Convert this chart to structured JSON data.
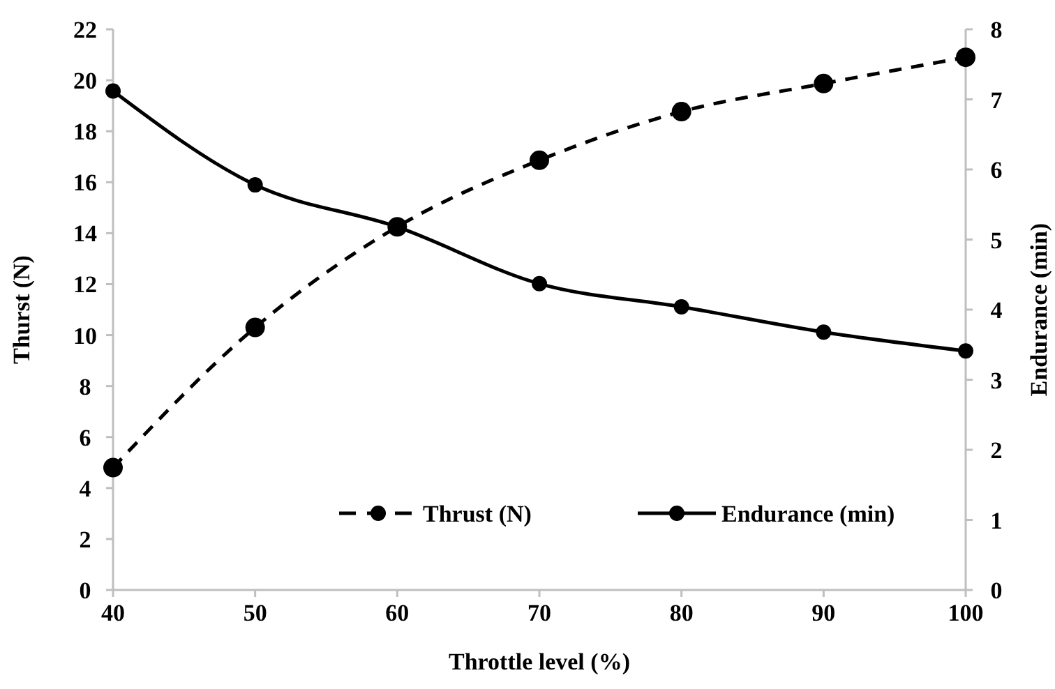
{
  "chart_data": {
    "type": "line",
    "xlabel": "Throttle level (%)",
    "ylabel": "Thurst (N)",
    "y2label": "Endurance (min)",
    "x": [
      40,
      50,
      60,
      70,
      80,
      90,
      100
    ],
    "xlim": [
      40,
      100
    ],
    "xticks": [
      40,
      50,
      60,
      70,
      80,
      90,
      100
    ],
    "ylim": [
      0,
      22
    ],
    "yticks": [
      0,
      2,
      4,
      6,
      8,
      10,
      12,
      14,
      16,
      18,
      20,
      22
    ],
    "y2lim": [
      0,
      8
    ],
    "y2ticks": [
      0,
      1,
      2,
      3,
      4,
      5,
      6,
      7,
      8
    ],
    "grid": false,
    "legend": "bottom right",
    "marker": "circle",
    "series": [
      {
        "name": "Thrust (N)",
        "color": "#000000",
        "line_style": "dashed",
        "values": [
          4.8,
          10.3,
          14.25,
          16.86,
          18.77,
          19.87,
          20.9
        ]
      },
      {
        "name": "Endurance (min)",
        "color": "#000000",
        "line_style": "solid",
        "axis": "y2",
        "values": [
          7.12,
          5.78,
          5.18,
          4.37,
          4.04,
          3.68,
          3.41
        ]
      }
    ]
  }
}
